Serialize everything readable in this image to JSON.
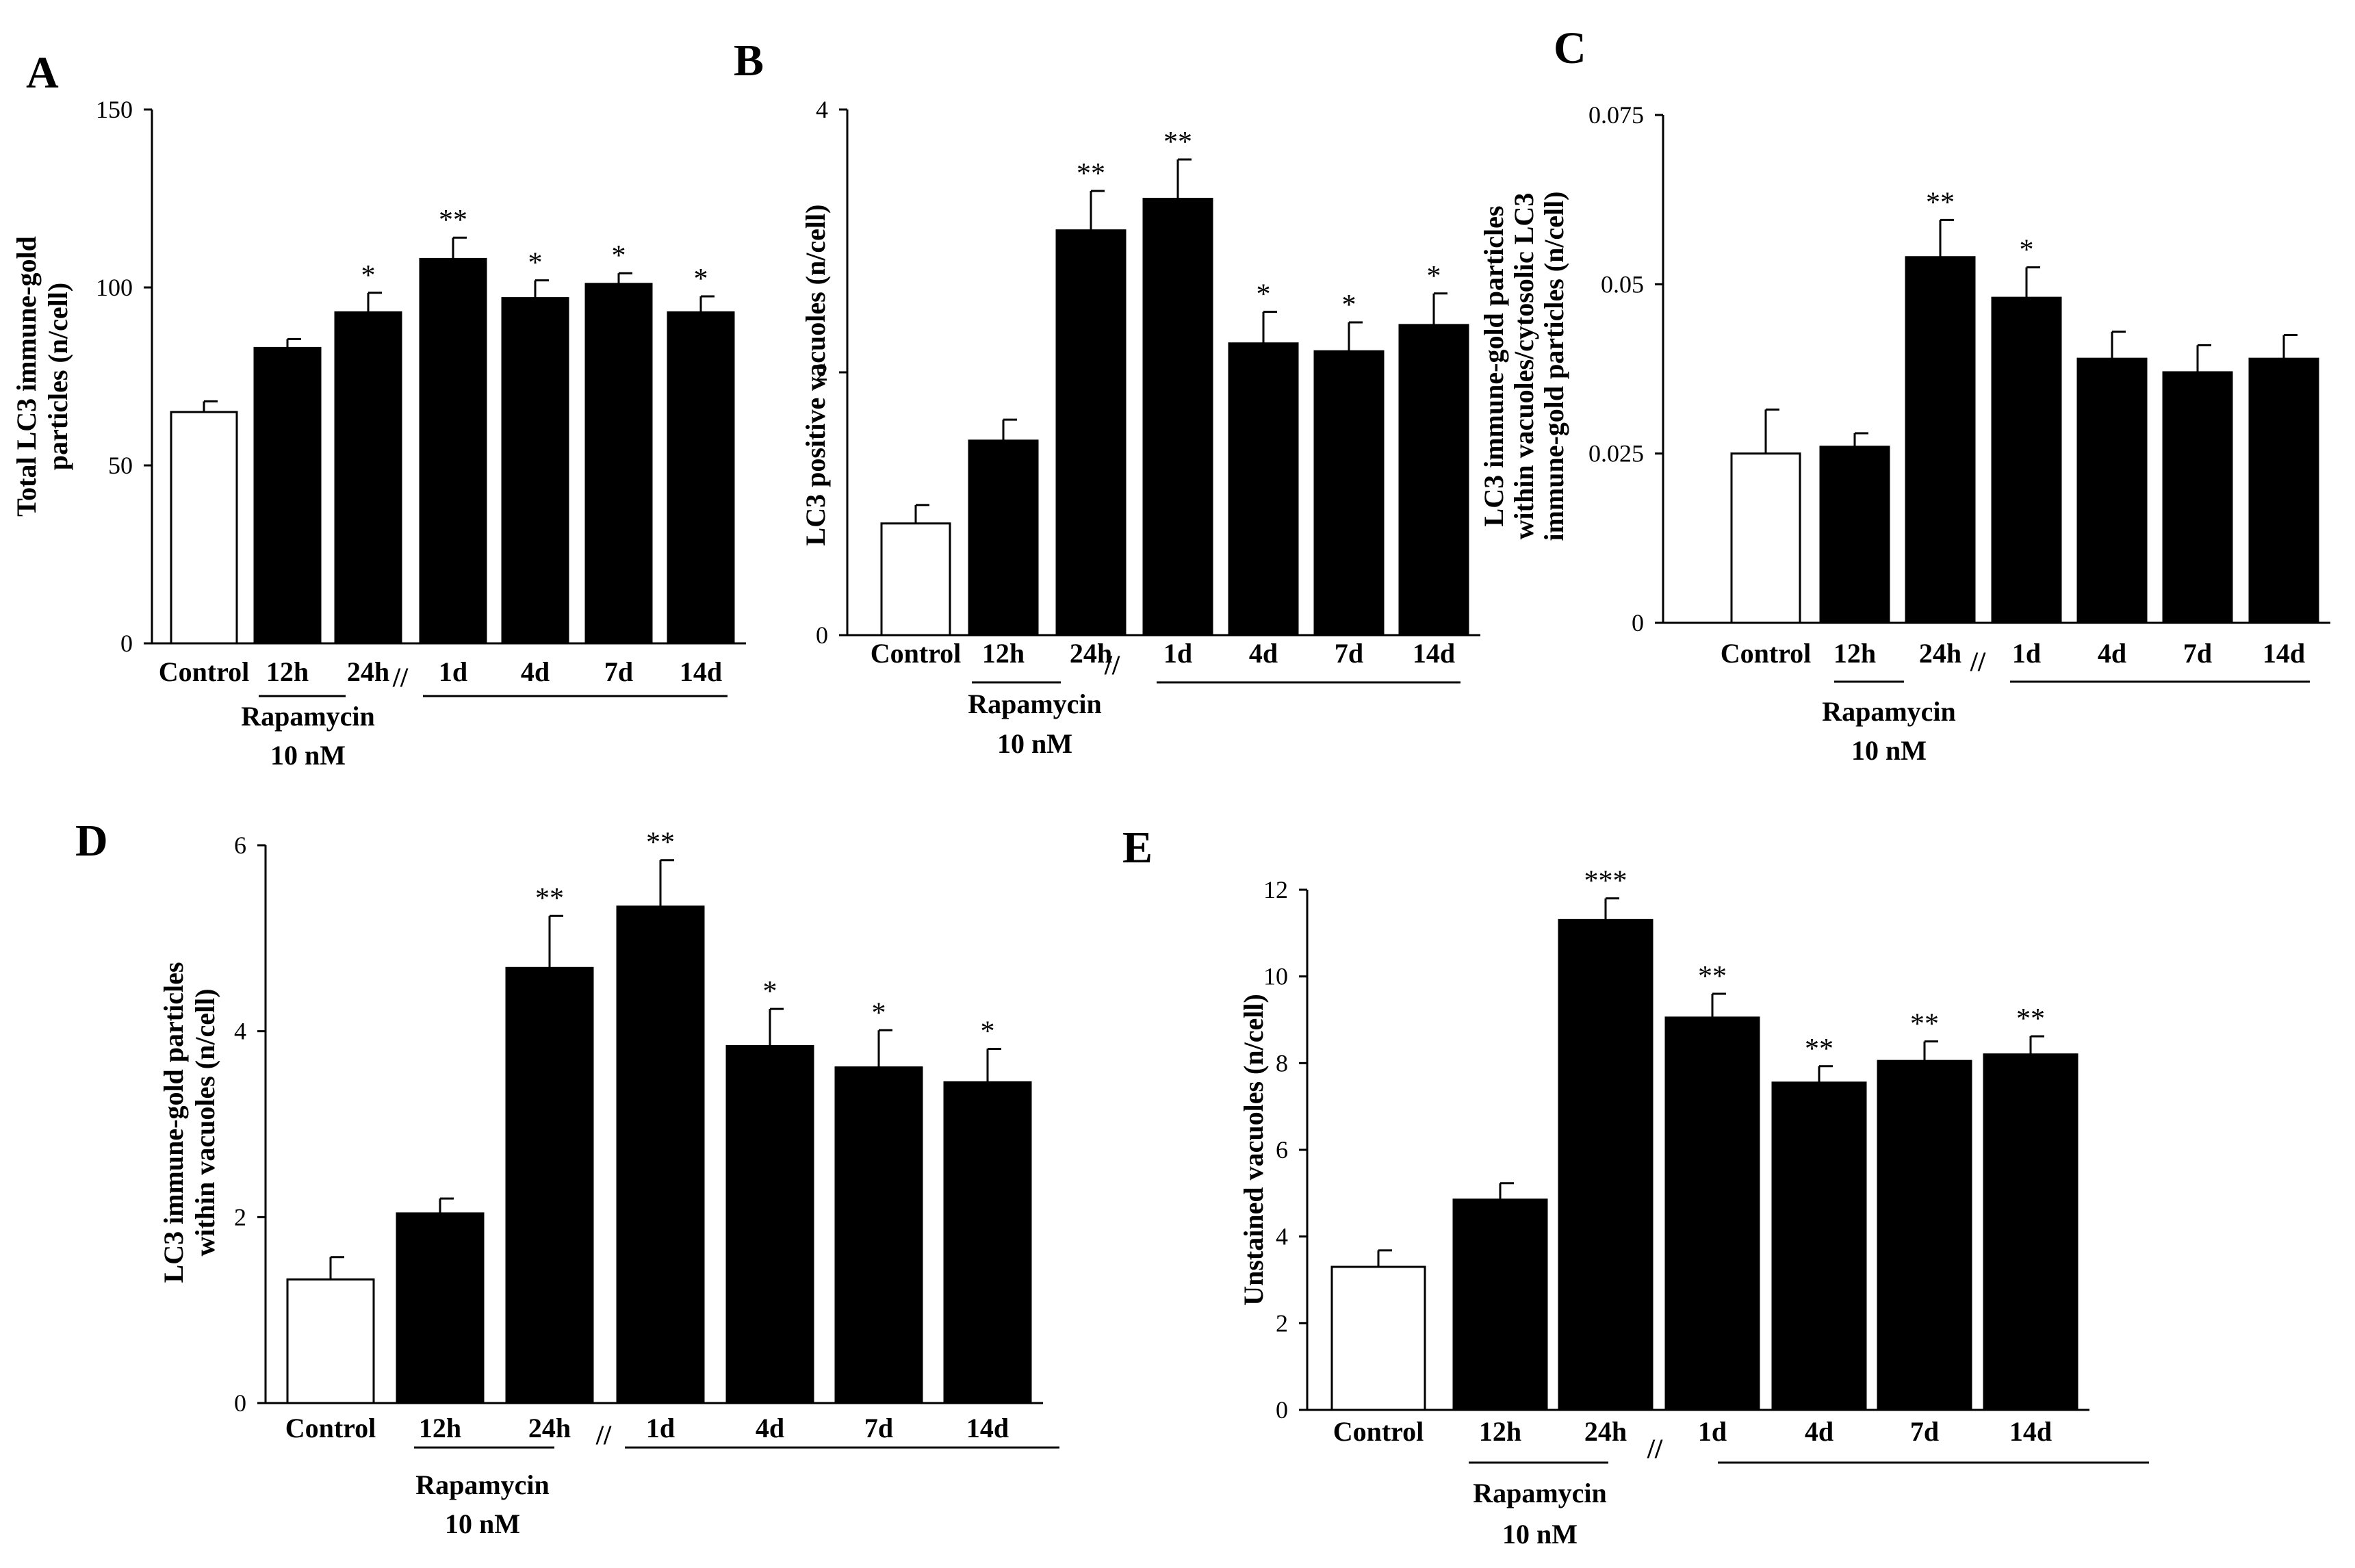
{
  "figure": {
    "treatment_label": "Rapamycin",
    "dose_label": "10 nM",
    "axis_break_glyph": "//",
    "colors": {
      "control_fill": "#ffffff",
      "treated_fill": "#000000",
      "stroke": "#000000"
    }
  },
  "chart_data": [
    {
      "id": "A",
      "panel_label": "A",
      "type": "bar",
      "ylabel_lines": [
        "Total LC3 immune-gold",
        "particles (n/cell)"
      ],
      "categories": [
        "Control",
        "12h",
        "24h",
        "1d",
        "4d",
        "7d",
        "14d"
      ],
      "values": [
        65,
        83,
        93,
        108,
        97,
        101,
        93
      ],
      "errors": [
        3,
        2.5,
        5.5,
        6,
        5,
        3,
        4.5
      ],
      "significance": [
        "",
        "",
        "*",
        "**",
        "*",
        "*",
        "*"
      ],
      "ylim": [
        0,
        150
      ],
      "yticks": [
        0,
        50,
        100,
        150
      ],
      "ytick_labels": [
        "0",
        "50",
        "100",
        "150"
      ]
    },
    {
      "id": "B",
      "panel_label": "B",
      "type": "bar",
      "ylabel_lines": [
        "LC3 positive vacuoles (n/cell)"
      ],
      "categories": [
        "Control",
        "12h",
        "24h",
        "1d",
        "4d",
        "7d",
        "14d"
      ],
      "values": [
        0.85,
        1.48,
        3.08,
        3.32,
        2.22,
        2.16,
        2.36
      ],
      "errors": [
        0.14,
        0.16,
        0.3,
        0.3,
        0.24,
        0.22,
        0.24
      ],
      "significance": [
        "",
        "",
        "**",
        "**",
        "*",
        "*",
        "*"
      ],
      "ylim": [
        0,
        4
      ],
      "yticks": [
        0,
        2,
        4
      ],
      "ytick_labels": [
        "0",
        "2",
        "4"
      ]
    },
    {
      "id": "C",
      "panel_label": "C",
      "type": "bar",
      "ylabel_lines": [
        "LC3 immune-gold particles",
        "within vacuoles/cytosolic LC3",
        "immune-gold particles (n/cell)"
      ],
      "categories": [
        "Control",
        "12h",
        "24h",
        "1d",
        "4d",
        "7d",
        "14d"
      ],
      "values": [
        0.025,
        0.026,
        0.054,
        0.048,
        0.039,
        0.037,
        0.039
      ],
      "errors": [
        0.0065,
        0.002,
        0.0055,
        0.0045,
        0.004,
        0.004,
        0.0035
      ],
      "significance": [
        "",
        "",
        "**",
        "*",
        "",
        "",
        ""
      ],
      "ylim": [
        0,
        0.075
      ],
      "yticks": [
        0,
        0.025,
        0.05,
        0.075
      ],
      "ytick_labels": [
        "0",
        "0.025",
        "0.05",
        "0.075"
      ]
    },
    {
      "id": "D",
      "panel_label": "D",
      "type": "bar",
      "ylabel_lines": [
        "LC3 immune-gold particles",
        "within vacuoles (n/cell)"
      ],
      "categories": [
        "Control",
        "12h",
        "24h",
        "1d",
        "4d",
        "7d",
        "14d"
      ],
      "values": [
        1.33,
        2.04,
        4.68,
        5.34,
        3.84,
        3.61,
        3.45
      ],
      "errors": [
        0.24,
        0.16,
        0.56,
        0.5,
        0.4,
        0.4,
        0.36
      ],
      "significance": [
        "",
        "",
        "**",
        "**",
        "*",
        "*",
        "*"
      ],
      "ylim": [
        0,
        6
      ],
      "yticks": [
        0,
        2,
        4,
        6
      ],
      "ytick_labels": [
        "0",
        "2",
        "4",
        "6"
      ]
    },
    {
      "id": "E",
      "panel_label": "E",
      "type": "bar",
      "ylabel_lines": [
        "Unstained vacuoles  (n/cell)"
      ],
      "categories": [
        "Control",
        "12h",
        "24h",
        "1d",
        "4d",
        "7d",
        "14d"
      ],
      "values": [
        3.3,
        4.85,
        11.3,
        9.05,
        7.55,
        8.05,
        8.2
      ],
      "errors": [
        0.38,
        0.38,
        0.5,
        0.55,
        0.38,
        0.45,
        0.42
      ],
      "significance": [
        "",
        "",
        "***",
        "**",
        "**",
        "**",
        "**"
      ],
      "ylim": [
        0,
        12
      ],
      "yticks": [
        0,
        2,
        4,
        6,
        8,
        10,
        12
      ],
      "ytick_labels": [
        "0",
        "2",
        "4",
        "6",
        "8",
        "10",
        "12"
      ]
    }
  ]
}
